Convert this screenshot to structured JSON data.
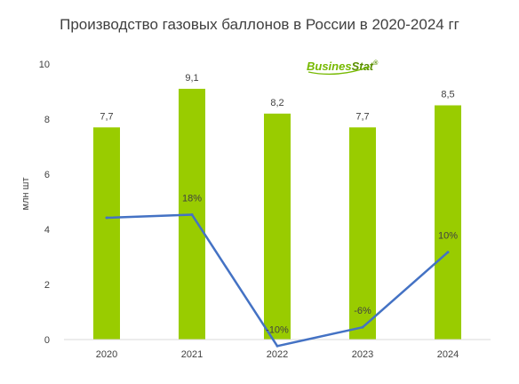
{
  "chart_data": {
    "type": "bar",
    "title": "Производство газовых баллонов в России в 2020-2024 гг",
    "ylabel": "млн шт",
    "xlabel": "",
    "categories": [
      "2020",
      "2021",
      "2022",
      "2023",
      "2024"
    ],
    "values": [
      7.7,
      9.1,
      8.2,
      7.7,
      8.5
    ],
    "value_labels": [
      "7,7",
      "9,1",
      "8,2",
      "7,7",
      "8,5"
    ],
    "ylim": [
      0,
      10
    ],
    "yticks": [
      "0",
      "2",
      "4",
      "6",
      "8",
      "10"
    ],
    "bar_color": "#99cc00",
    "growth_series": {
      "type": "line",
      "color": "#4472c4",
      "values": [
        null,
        18,
        -10,
        -6,
        10
      ],
      "labels": [
        "",
        "18%",
        "-10%",
        "-6%",
        "10%"
      ]
    },
    "grid": false
  },
  "watermark": {
    "text_part1": "Busines",
    "text_part2": "Stat",
    "symbol": "®",
    "color_part1": "#76b900",
    "color_part2": "#5a8f00"
  }
}
